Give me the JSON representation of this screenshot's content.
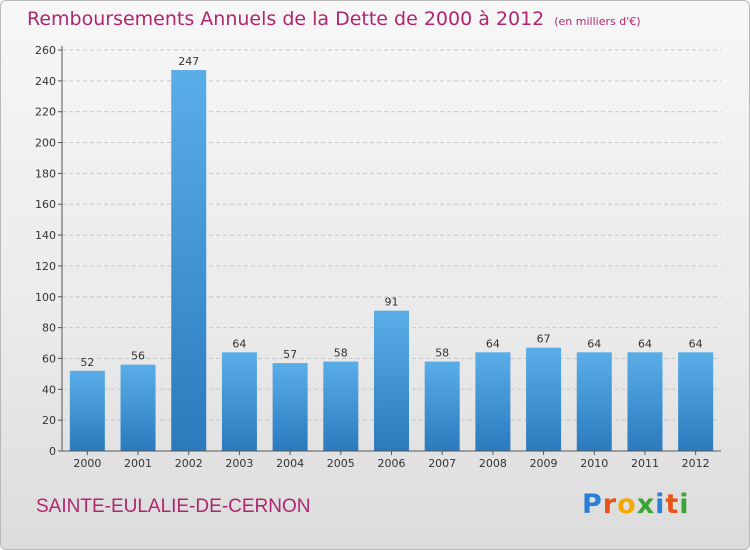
{
  "title": "Remboursements Annuels de la Dette de 2000 à 2012",
  "unit": "(en milliers d'€)",
  "commune": "SAINTE-EULALIE-DE-CERNON",
  "logo": {
    "text": "Proxiti",
    "letters": [
      {
        "ch": "P",
        "color": "#2a7fd6"
      },
      {
        "ch": "r",
        "color": "#e8531c"
      },
      {
        "ch": "o",
        "color": "#f2a900"
      },
      {
        "ch": "x",
        "color": "#3aa535"
      },
      {
        "ch": "i",
        "color": "#2a7fd6"
      },
      {
        "ch": "t",
        "color": "#e8531c"
      },
      {
        "ch": "i",
        "color": "#3aa535"
      }
    ]
  },
  "colors": {
    "title": "#b0266e",
    "bar_light": "#5aaee8",
    "bar_dark": "#2a7abd",
    "grid": "#c8c8c8",
    "axis": "#555555"
  },
  "chart_data": {
    "type": "bar",
    "title": "Remboursements Annuels de la Dette de 2000 à 2012",
    "xlabel": "",
    "ylabel": "",
    "categories": [
      "2000",
      "2001",
      "2002",
      "2003",
      "2004",
      "2005",
      "2006",
      "2007",
      "2008",
      "2009",
      "2010",
      "2011",
      "2012"
    ],
    "values": [
      52,
      56,
      247,
      64,
      57,
      58,
      91,
      58,
      64,
      67,
      64,
      64,
      64
    ],
    "ylim": [
      0,
      260
    ],
    "yticks": [
      0,
      20,
      40,
      60,
      80,
      100,
      120,
      140,
      160,
      180,
      200,
      220,
      240,
      260
    ],
    "grid": true,
    "grid_style": "dashed horizontal",
    "data_labels": true
  }
}
